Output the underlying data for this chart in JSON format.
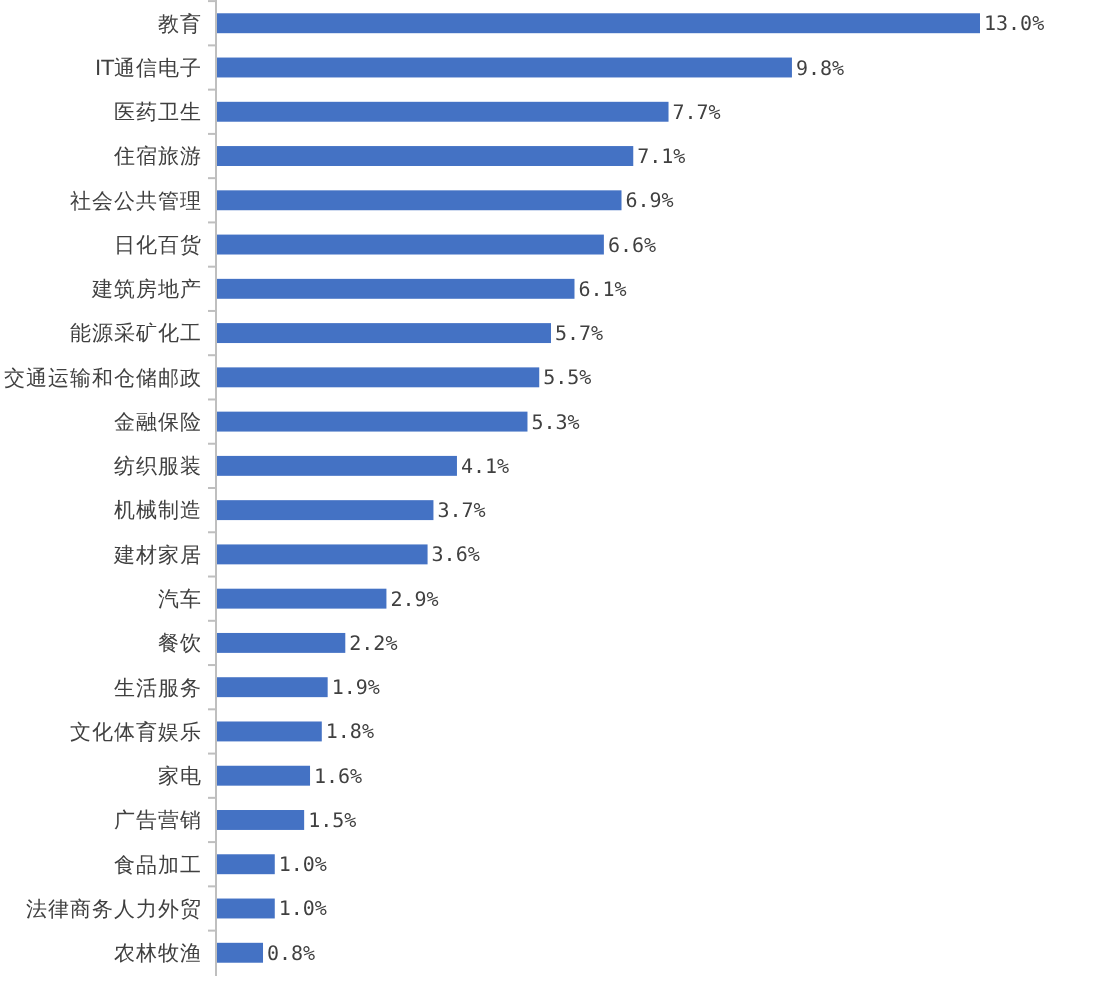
{
  "chart_data": {
    "type": "bar",
    "orientation": "horizontal",
    "color": "#4472c4",
    "categories": [
      "教育",
      "IT通信电子",
      "医药卫生",
      "住宿旅游",
      "社会公共管理",
      "日化百货",
      "建筑房地产",
      "能源采矿化工",
      "交通运输和仓储邮政",
      "金融保险",
      "纺织服装",
      "机械制造",
      "建材家居",
      "汽车",
      "餐饮",
      "生活服务",
      "文化体育娱乐",
      "家电",
      "广告营销",
      "食品加工",
      "法律商务人力外贸",
      "农林牧渔"
    ],
    "values": [
      13.0,
      9.8,
      7.7,
      7.1,
      6.9,
      6.6,
      6.1,
      5.7,
      5.5,
      5.3,
      4.1,
      3.7,
      3.6,
      2.9,
      2.2,
      1.9,
      1.8,
      1.6,
      1.5,
      1.0,
      1.0,
      0.8
    ],
    "value_labels": [
      "13.0%",
      "9.8%",
      "7.7%",
      "7.1%",
      "6.9%",
      "6.6%",
      "6.1%",
      "5.7%",
      "5.5%",
      "5.3%",
      "4.1%",
      "3.7%",
      "3.6%",
      "2.9%",
      "2.2%",
      "1.9%",
      "1.8%",
      "1.6%",
      "1.5%",
      "1.0%",
      "1.0%",
      "0.8%"
    ]
  }
}
